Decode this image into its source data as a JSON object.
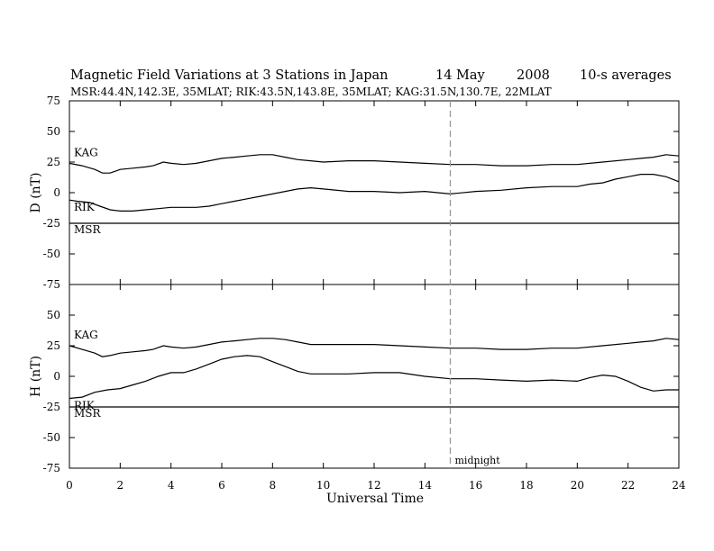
{
  "title": {
    "main": "Magnetic Field Variations at 3 Stations in Japan",
    "date": "14  May",
    "year": "2008",
    "averaging": "10-s averages",
    "stations_line": "MSR:44.4N,142.3E, 35MLAT;  RIK:43.5N,143.8E, 35MLAT;  KAG:31.5N,130.7E, 22MLAT"
  },
  "chart_data": {
    "type": "line",
    "xlabel": "Universal Time",
    "xlim": [
      0,
      24
    ],
    "xticks": [
      0,
      2,
      4,
      6,
      8,
      10,
      12,
      14,
      16,
      18,
      20,
      22,
      24
    ],
    "midnight": {
      "x": 15,
      "label": "midnight"
    },
    "panels": [
      {
        "id": "D",
        "ylabel": "D (nT)",
        "ylim": [
          -75,
          75
        ],
        "yticks": [
          75,
          50,
          25,
          0,
          -25,
          -50,
          -75
        ],
        "station_labels": [
          "KAG",
          "RIK",
          "MSR"
        ],
        "series": [
          {
            "name": "KAG",
            "x": [
              0,
              0.5,
              1,
              1.3,
              1.6,
              2,
              2.5,
              3,
              3.3,
              3.7,
              4,
              4.5,
              5,
              5.5,
              6,
              6.5,
              7,
              7.5,
              8,
              8.5,
              9,
              9.5,
              10,
              11,
              12,
              13,
              14,
              15,
              16,
              17,
              18,
              19,
              20,
              21,
              22,
              22.5,
              23,
              23.5,
              24
            ],
            "y": [
              24,
              22,
              19,
              16,
              16,
              19,
              20,
              21,
              22,
              25,
              24,
              23,
              24,
              26,
              28,
              29,
              30,
              31,
              31,
              29,
              27,
              26,
              25,
              26,
              26,
              25,
              24,
              23,
              23,
              22,
              22,
              23,
              23,
              25,
              27,
              28,
              29,
              31,
              30
            ]
          },
          {
            "name": "RIK",
            "x": [
              0,
              0.3,
              0.8,
              1.2,
              1.6,
              2,
              2.5,
              3,
              3.5,
              4,
              4.5,
              5,
              5.5,
              6,
              6.5,
              7,
              7.5,
              8,
              8.5,
              9,
              9.5,
              10,
              11,
              12,
              13,
              14,
              15,
              16,
              17,
              18,
              19,
              20,
              20.5,
              21,
              21.5,
              22,
              22.5,
              23,
              23.5,
              24
            ],
            "y": [
              -6,
              -7,
              -8,
              -11,
              -14,
              -15,
              -15,
              -14,
              -13,
              -12,
              -12,
              -12,
              -11,
              -9,
              -7,
              -5,
              -3,
              -1,
              1,
              3,
              4,
              3,
              1,
              1,
              0,
              1,
              -1,
              1,
              2,
              4,
              5,
              5,
              7,
              8,
              11,
              13,
              15,
              15,
              13,
              9
            ]
          },
          {
            "name": "MSR",
            "x": [
              0,
              24
            ],
            "y": [
              -25,
              -25
            ]
          }
        ]
      },
      {
        "id": "H",
        "ylabel": "H (nT)",
        "ylim": [
          -75,
          75
        ],
        "yticks": [
          75,
          50,
          25,
          0,
          -25,
          -50,
          -75
        ],
        "station_labels": [
          "KAG",
          "RIK",
          "MSR"
        ],
        "series": [
          {
            "name": "KAG",
            "x": [
              0,
              0.5,
              1,
              1.3,
              1.6,
              2,
              2.5,
              3,
              3.3,
              3.7,
              4,
              4.5,
              5,
              5.5,
              6,
              6.5,
              7,
              7.5,
              8,
              8.5,
              9,
              9.5,
              10,
              11,
              12,
              13,
              14,
              15,
              16,
              17,
              18,
              19,
              20,
              21,
              22,
              22.5,
              23,
              23.5,
              24
            ],
            "y": [
              25,
              22,
              19,
              16,
              17,
              19,
              20,
              21,
              22,
              25,
              24,
              23,
              24,
              26,
              28,
              29,
              30,
              31,
              31,
              30,
              28,
              26,
              26,
              26,
              26,
              25,
              24,
              23,
              23,
              22,
              22,
              23,
              23,
              25,
              27,
              28,
              29,
              31,
              30
            ]
          },
          {
            "name": "RIK",
            "x": [
              0,
              0.5,
              1,
              1.5,
              2,
              2.5,
              3,
              3.5,
              4,
              4.5,
              5,
              5.5,
              6,
              6.5,
              7,
              7.5,
              8,
              8.5,
              9,
              9.5,
              10,
              11,
              12,
              13,
              14,
              15,
              16,
              17,
              18,
              19,
              20,
              20.5,
              21,
              21.5,
              22,
              22.5,
              23,
              23.5,
              24
            ],
            "y": [
              -18,
              -17,
              -13,
              -11,
              -10,
              -7,
              -4,
              0,
              3,
              3,
              6,
              10,
              14,
              16,
              17,
              16,
              12,
              8,
              4,
              2,
              2,
              2,
              3,
              3,
              0,
              -2,
              -2,
              -3,
              -4,
              -3,
              -4,
              -1,
              1,
              0,
              -4,
              -9,
              -12,
              -11,
              -11
            ]
          },
          {
            "name": "MSR",
            "x": [
              0,
              24
            ],
            "y": [
              -25,
              -25
            ]
          }
        ]
      }
    ]
  }
}
